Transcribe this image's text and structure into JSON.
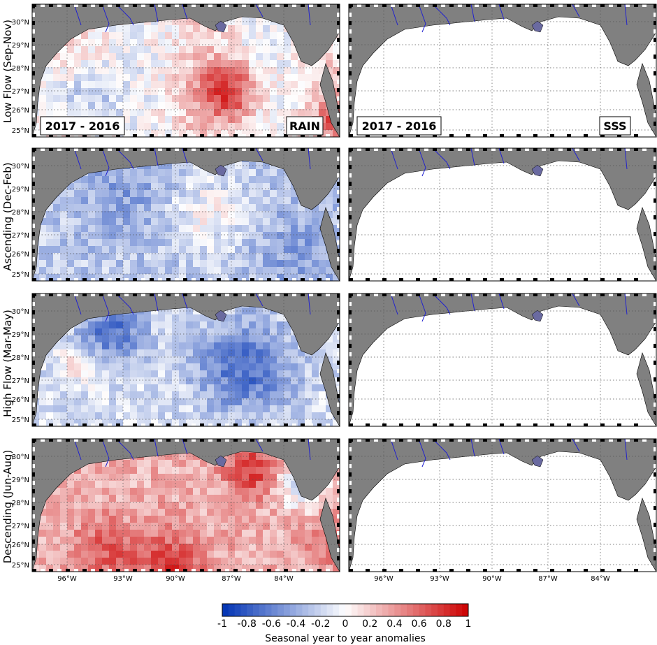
{
  "rows": [
    {
      "label": "Low Flow (Sep-Nov)",
      "pattern": "lowflow"
    },
    {
      "label": "Ascending (Dec-Feb)",
      "pattern": "ascending"
    },
    {
      "label": "High Flow (Mar-May)",
      "pattern": "highflow"
    },
    {
      "label": "Descending (Jun-Aug)",
      "pattern": "descending"
    }
  ],
  "panel_labels": {
    "period": "2017 - 2016",
    "left_variable": "RAIN",
    "right_variable": "SSS"
  },
  "lat_ticks": [
    "30°N",
    "29°N",
    "28°N",
    "27°N",
    "26°N",
    "25°N"
  ],
  "lon_ticks": [
    "96°W",
    "93°W",
    "90°W",
    "87°W",
    "84°W"
  ],
  "colorbar": {
    "ticks": [
      "-1",
      "-0.8",
      "-0.6",
      "-0.4",
      "-0.2",
      "0",
      "0.2",
      "0.4",
      "0.6",
      "0.8",
      "1"
    ],
    "title": "Seasonal year to year anomalies",
    "range": [
      -1,
      1
    ]
  },
  "colors": {
    "land": "#808080",
    "rivers": "#2020d0",
    "positive": "#d40000",
    "negative": "#0030c0"
  }
}
